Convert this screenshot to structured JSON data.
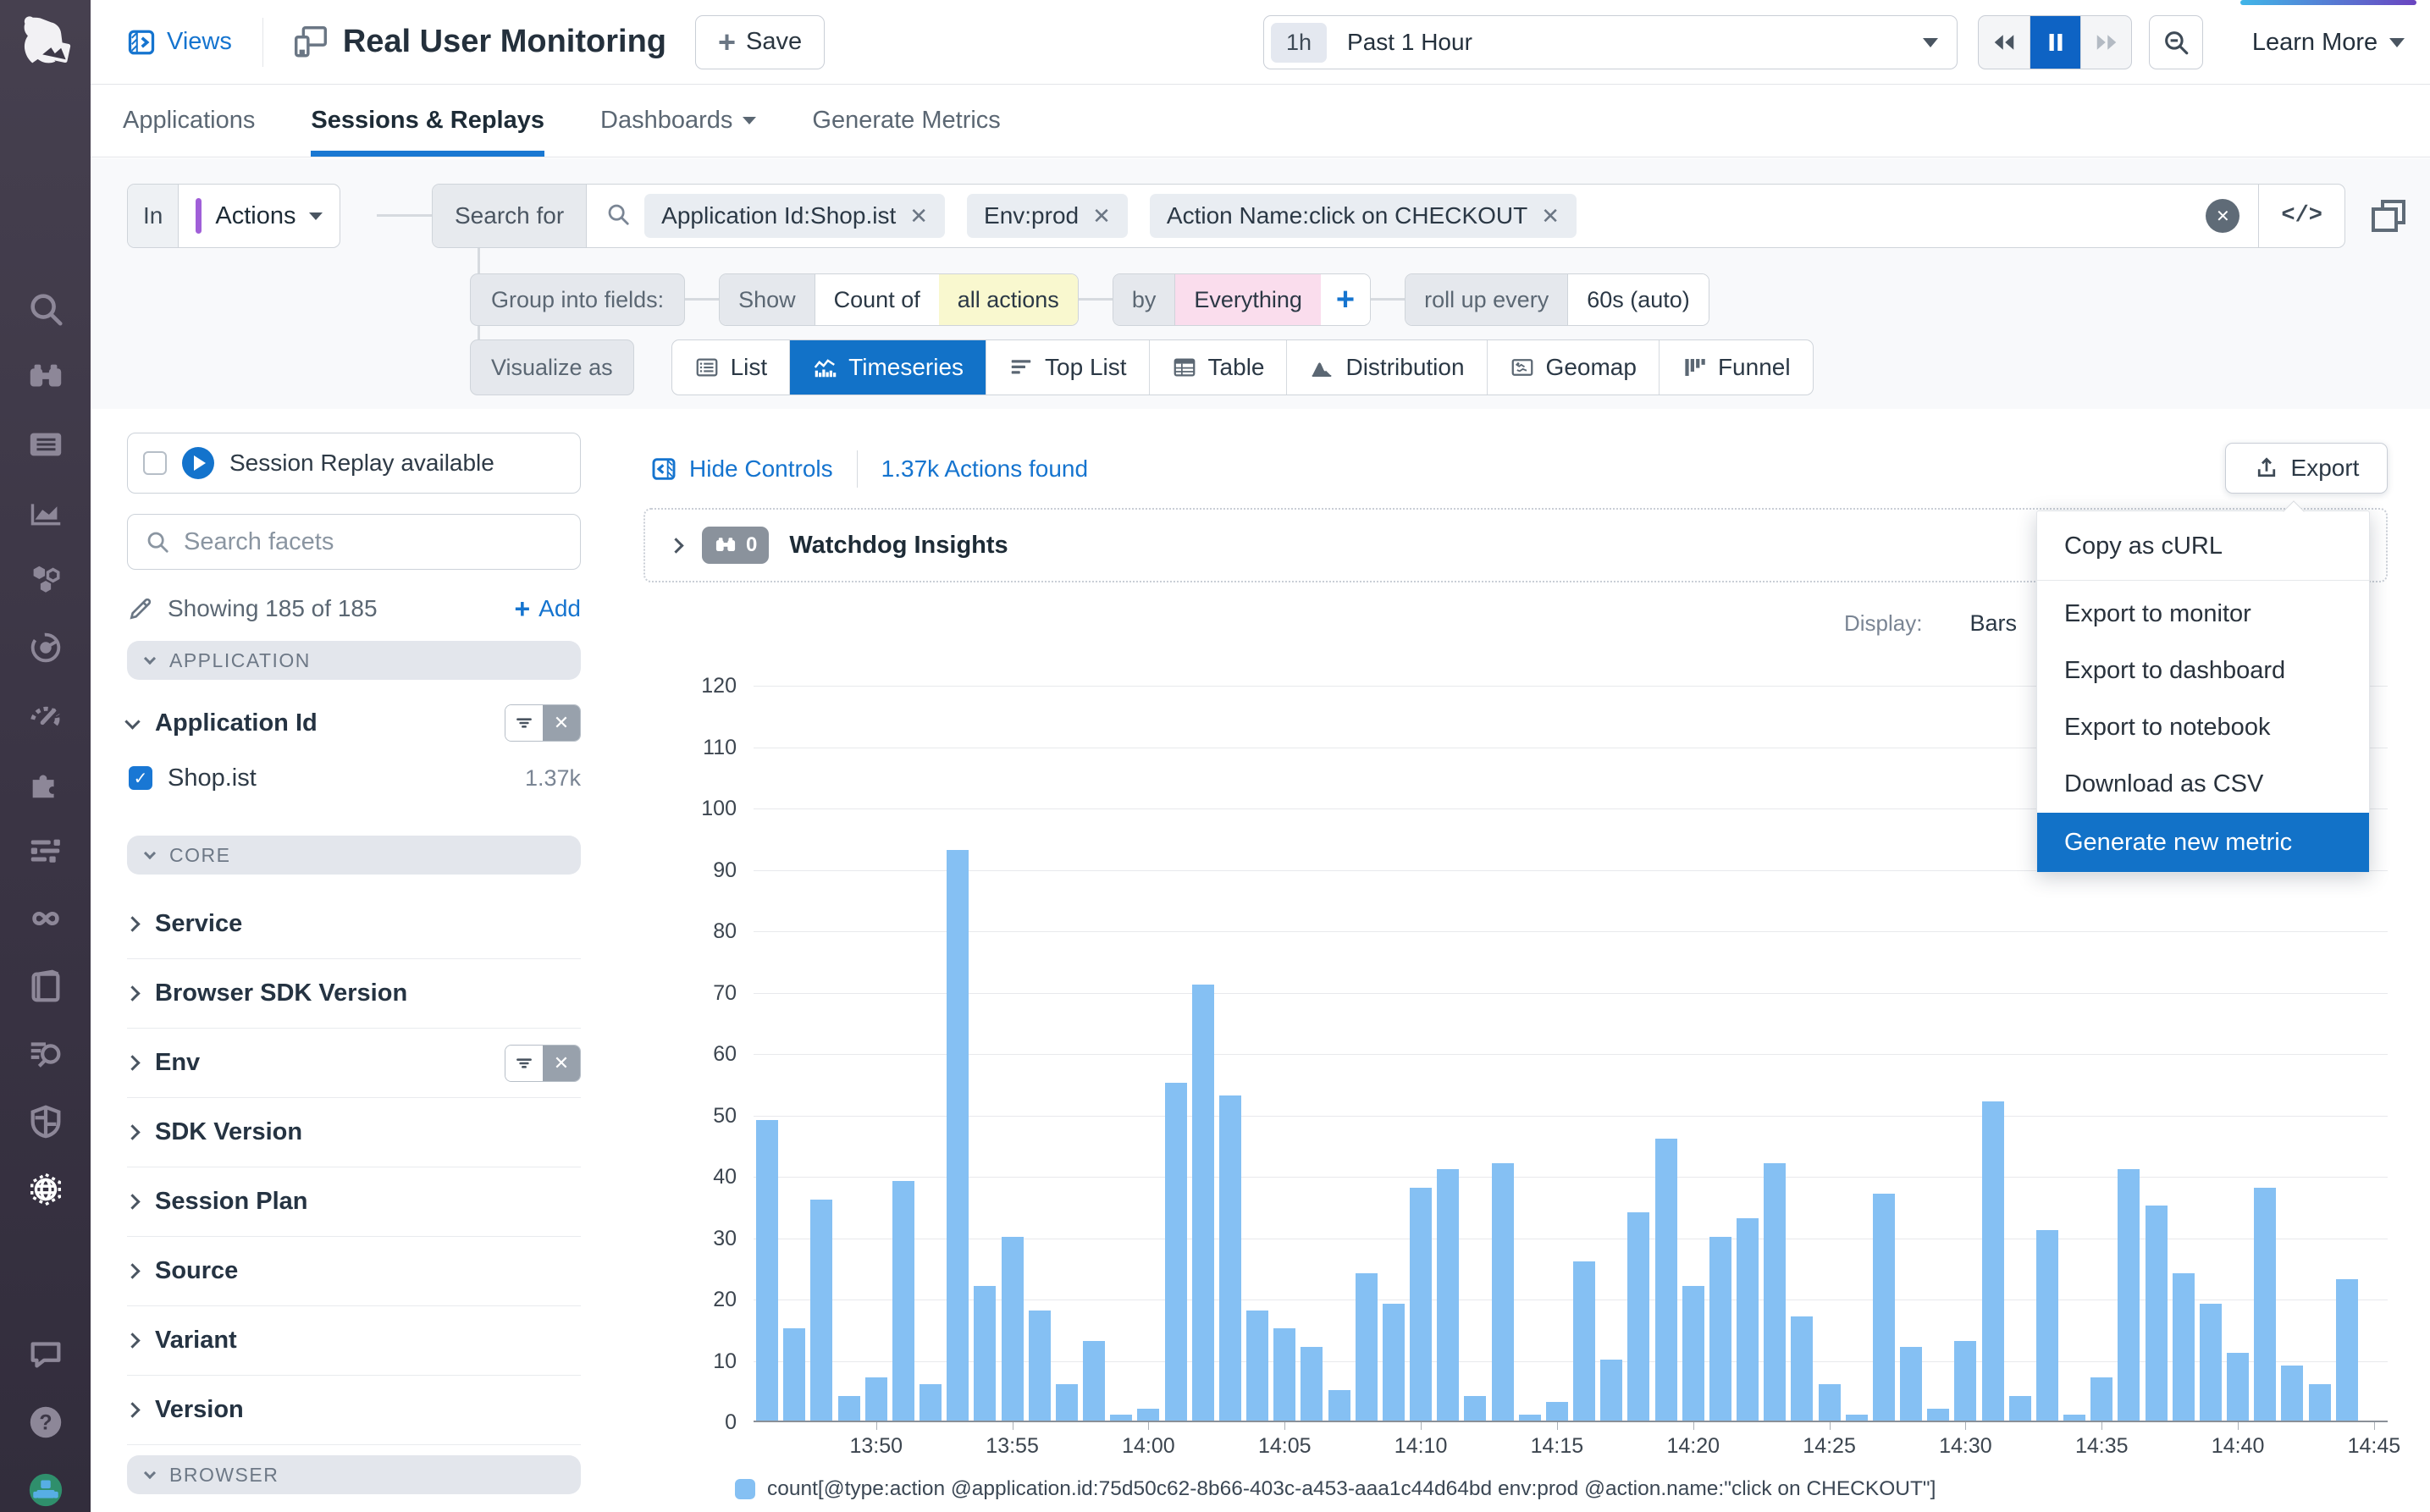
{
  "topbar": {
    "views_label": "Views",
    "title": "Real User Monitoring",
    "save_label": "Save",
    "time_badge": "1h",
    "time_range": "Past 1 Hour",
    "learn_more_label": "Learn More"
  },
  "tabs": {
    "items": [
      {
        "label": "Applications",
        "active": false
      },
      {
        "label": "Sessions & Replays",
        "active": true
      },
      {
        "label": "Dashboards",
        "active": false
      },
      {
        "label": "Generate Metrics",
        "active": false
      }
    ]
  },
  "search": {
    "in_label": "In",
    "scope_label": "Actions",
    "search_for_label": "Search for",
    "filters": [
      "Application Id:Shop.ist",
      "Env:prod",
      "Action Name:click on CHECKOUT"
    ],
    "code_button_label": "</>"
  },
  "query": {
    "group_label": "Group into fields:",
    "show_label": "Show",
    "count_of_label": "Count of",
    "count_target": "all actions",
    "by_label": "by",
    "by_value": "Everything",
    "add_group_label": "+",
    "rollup_label": "roll up every",
    "rollup_value": "60s (auto)"
  },
  "visualize": {
    "label": "Visualize as",
    "selected": "Timeseries",
    "options": [
      {
        "label": "List",
        "icon": "list-icon"
      },
      {
        "label": "Timeseries",
        "icon": "timeseries-icon"
      },
      {
        "label": "Top List",
        "icon": "toplist-icon"
      },
      {
        "label": "Table",
        "icon": "table-icon"
      },
      {
        "label": "Distribution",
        "icon": "distribution-icon"
      },
      {
        "label": "Geomap",
        "icon": "geomap-icon"
      },
      {
        "label": "Funnel",
        "icon": "funnel-icon"
      }
    ]
  },
  "sidebar": {
    "session_replay_label": "Session Replay available",
    "facet_search_placeholder": "Search facets",
    "showing_text": "Showing 185 of 185",
    "add_label": "Add",
    "application_group_label": "APPLICATION",
    "application_facet": {
      "label": "Application Id",
      "filtered": true,
      "values": [
        {
          "label": "Shop.ist",
          "count": "1.37k",
          "checked": true
        }
      ]
    },
    "core_group_label": "CORE",
    "core_facets": [
      {
        "label": "Service",
        "filtered": false
      },
      {
        "label": "Browser SDK Version",
        "filtered": false
      },
      {
        "label": "Env",
        "filtered": true
      },
      {
        "label": "SDK Version",
        "filtered": false
      },
      {
        "label": "Session Plan",
        "filtered": false
      },
      {
        "label": "Source",
        "filtered": false
      },
      {
        "label": "Variant",
        "filtered": false
      },
      {
        "label": "Version",
        "filtered": false
      }
    ],
    "browser_group_label": "BROWSER"
  },
  "main": {
    "hide_controls_label": "Hide Controls",
    "results_summary": "1.37k Actions found",
    "export_label": "Export",
    "watchdog_count": "0",
    "watchdog_label": "Watchdog Insights",
    "display_label": "Display:",
    "display_value": "Bars"
  },
  "export_menu": {
    "items": [
      "Copy as cURL",
      "Export to monitor",
      "Export to dashboard",
      "Export to notebook",
      "Download as CSV",
      "Generate new metric"
    ],
    "highlighted_item": "Generate new metric"
  },
  "chart_data": {
    "type": "bar",
    "title": "",
    "xlabel": "",
    "ylabel": "",
    "ylim": [
      0,
      120
    ],
    "ytick_step": 10,
    "grid": true,
    "legend_position": "bottom",
    "display_mode": "Bars",
    "bar_color": "#85c0f3",
    "slots": 60,
    "minutes_per_bar": 1,
    "x_start": "13:46",
    "x_end": "14:44",
    "values": [
      49,
      15,
      36,
      4,
      7,
      39,
      6,
      93,
      22,
      30,
      18,
      6,
      13,
      1,
      2,
      55,
      71,
      53,
      18,
      15,
      12,
      5,
      24,
      19,
      38,
      41,
      4,
      42,
      1,
      3,
      26,
      10,
      34,
      46,
      22,
      30,
      33,
      42,
      17,
      6,
      1,
      37,
      12,
      2,
      13,
      52,
      4,
      31,
      1,
      7,
      41,
      35,
      24,
      19,
      11,
      38,
      9,
      6,
      23
    ],
    "ticks": [
      {
        "label": "13:50",
        "slot": 4
      },
      {
        "label": "13:55",
        "slot": 9
      },
      {
        "label": "14:00",
        "slot": 14
      },
      {
        "label": "14:05",
        "slot": 19
      },
      {
        "label": "14:10",
        "slot": 24
      },
      {
        "label": "14:15",
        "slot": 29
      },
      {
        "label": "14:20",
        "slot": 34
      },
      {
        "label": "14:25",
        "slot": 39
      },
      {
        "label": "14:30",
        "slot": 44
      },
      {
        "label": "14:35",
        "slot": 49
      },
      {
        "label": "14:40",
        "slot": 54
      },
      {
        "label": "14:45",
        "slot": 59
      }
    ],
    "legend": "count[@type:action @application.id:75d50c62-8b66-403c-a453-aaa1c44d64bd env:prod @action.name:\"click on CHECKOUT\"]"
  }
}
